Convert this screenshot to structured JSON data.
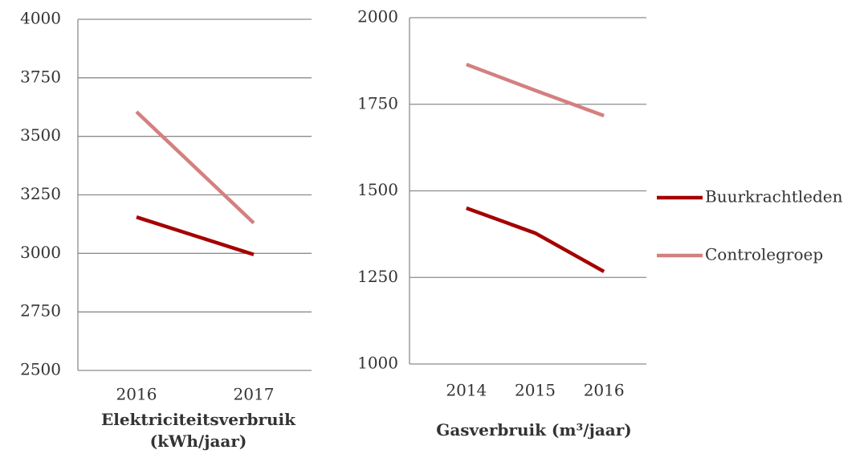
{
  "chart_data": [
    {
      "type": "line",
      "title": "Elektriciteitsverbruik (kWh/jaar)",
      "categories": [
        "2016",
        "2017"
      ],
      "series": [
        {
          "name": "Buurkrachtleden",
          "color": "#a50000",
          "values": [
            3155,
            2995
          ]
        },
        {
          "name": "Controlegroep",
          "color": "#d48080",
          "values": [
            3605,
            3130
          ]
        }
      ],
      "ylim": [
        2500,
        4000
      ],
      "yticks": [
        2500,
        2750,
        3000,
        3250,
        3500,
        3750,
        4000
      ],
      "grid": true
    },
    {
      "type": "line",
      "title": "Gasverbruik (m³/jaar)",
      "categories": [
        "2014",
        "2015",
        "2016"
      ],
      "series": [
        {
          "name": "Buurkrachtleden",
          "color": "#a50000",
          "values": [
            1450,
            1378,
            1267
          ]
        },
        {
          "name": "Controlegroep",
          "color": "#d48080",
          "values": [
            1865,
            1790,
            1717
          ]
        }
      ],
      "ylim": [
        1000,
        2000
      ],
      "yticks": [
        1000,
        1250,
        1500,
        1750,
        2000
      ],
      "grid": true
    }
  ]
}
